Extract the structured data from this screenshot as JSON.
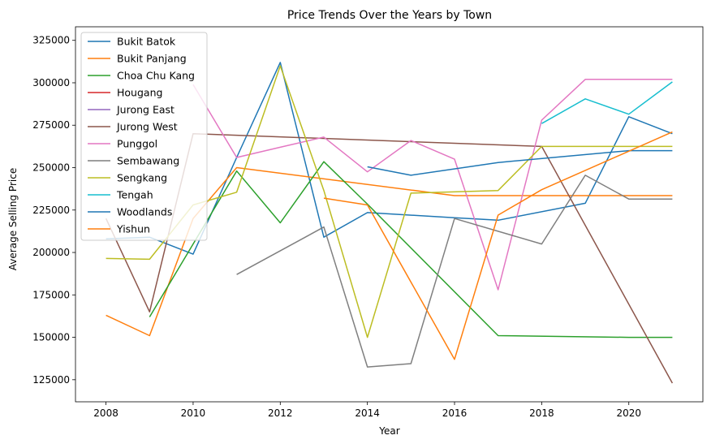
{
  "chart_data": {
    "type": "line",
    "title": "Price Trends Over the Years by Town",
    "xlabel": "Year",
    "ylabel": "Average Selling Price",
    "xlim": [
      2007.3,
      2021.7
    ],
    "ylim": [
      112000,
      333000
    ],
    "xticks": [
      2008,
      2010,
      2012,
      2014,
      2016,
      2018,
      2020
    ],
    "yticks": [
      125000,
      150000,
      175000,
      200000,
      225000,
      250000,
      275000,
      300000,
      325000
    ],
    "grid": false,
    "legend_position": "top-left",
    "series": [
      {
        "name": "Bukit Batok",
        "color": "#1f77b4",
        "points": [
          [
            2008,
            208000
          ],
          [
            2009,
            209000
          ],
          [
            2010,
            199000
          ],
          [
            2011,
            256000
          ],
          [
            2012,
            312000
          ],
          [
            2013,
            209000
          ],
          [
            2014,
            223500
          ],
          [
            2016,
            220500
          ],
          [
            2017,
            219000
          ],
          [
            2019,
            229000
          ],
          [
            2020,
            280000
          ],
          [
            2021,
            270000
          ]
        ]
      },
      {
        "name": "Bukit Panjang",
        "color": "#ff7f0e",
        "points": [
          [
            2008,
            163000
          ],
          [
            2009,
            151000
          ],
          [
            2010,
            220000
          ],
          [
            2011,
            250000
          ],
          [
            2016,
            233500
          ],
          [
            2021,
            233500
          ]
        ]
      },
      {
        "name": "Choa Chu Kang",
        "color": "#2ca02c",
        "points": [
          [
            2009,
            162000
          ],
          [
            2011,
            248000
          ],
          [
            2012,
            217500
          ],
          [
            2013,
            253500
          ],
          [
            2014,
            228500
          ],
          [
            2017,
            151000
          ],
          [
            2020,
            150000
          ],
          [
            2021,
            150000
          ]
        ]
      },
      {
        "name": "Hougang",
        "color": "#d62728",
        "points": []
      },
      {
        "name": "Jurong East",
        "color": "#9467bd",
        "points": []
      },
      {
        "name": "Jurong West",
        "color": "#8c564b",
        "points": [
          [
            2008,
            220000
          ],
          [
            2009,
            165000
          ],
          [
            2010,
            270000
          ],
          [
            2018,
            262500
          ],
          [
            2021,
            123000
          ]
        ]
      },
      {
        "name": "Punggol",
        "color": "#e377c2",
        "points": [
          [
            2010,
            299000
          ],
          [
            2011,
            256000
          ],
          [
            2012,
            262000
          ],
          [
            2013,
            268000
          ],
          [
            2014,
            247500
          ],
          [
            2015,
            266000
          ],
          [
            2016,
            255000
          ],
          [
            2017,
            178000
          ],
          [
            2018,
            278000
          ],
          [
            2019,
            302000
          ],
          [
            2021,
            302000
          ]
        ]
      },
      {
        "name": "Sembawang",
        "color": "#7f7f7f",
        "points": [
          [
            2011,
            187000
          ],
          [
            2013,
            215000
          ],
          [
            2014,
            132500
          ],
          [
            2015,
            134500
          ],
          [
            2016,
            220000
          ],
          [
            2018,
            205000
          ],
          [
            2019,
            245500
          ],
          [
            2020,
            231500
          ],
          [
            2021,
            231500
          ]
        ]
      },
      {
        "name": "Sengkang",
        "color": "#bcbd22",
        "points": [
          [
            2008,
            196500
          ],
          [
            2009,
            196000
          ],
          [
            2010,
            228000
          ],
          [
            2011,
            235500
          ],
          [
            2012,
            310000
          ],
          [
            2013,
            236500
          ],
          [
            2014,
            150000
          ],
          [
            2015,
            235000
          ],
          [
            2017,
            236500
          ],
          [
            2018,
            262500
          ],
          [
            2021,
            262500
          ]
        ]
      },
      {
        "name": "Tengah",
        "color": "#17becf",
        "points": [
          [
            2018,
            276000
          ],
          [
            2019,
            290500
          ],
          [
            2020,
            281500
          ],
          [
            2021,
            300500
          ]
        ]
      },
      {
        "name": "Woodlands",
        "color": "#1f77b4",
        "points": [
          [
            2014,
            250500
          ],
          [
            2015,
            245500
          ],
          [
            2017,
            253000
          ],
          [
            2020,
            260000
          ],
          [
            2021,
            260000
          ]
        ]
      },
      {
        "name": "Yishun",
        "color": "#ff7f0e",
        "points": [
          [
            2013,
            232000
          ],
          [
            2014,
            228000
          ],
          [
            2016,
            137000
          ],
          [
            2017,
            222000
          ],
          [
            2018,
            237000
          ],
          [
            2021,
            271000
          ]
        ]
      }
    ]
  }
}
